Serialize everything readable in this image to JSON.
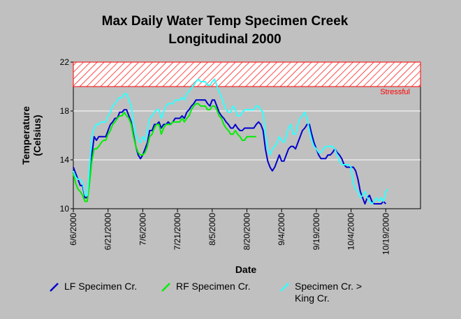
{
  "chart_data": {
    "type": "line",
    "title": [
      "Max Daily Water Temp Specimen Creek",
      "Longitudinal 2000"
    ],
    "xlabel": "Date",
    "ylabel": [
      "Temperature",
      "(Celsius)"
    ],
    "ylim": [
      10,
      22
    ],
    "yticks": [
      10,
      14,
      18,
      22
    ],
    "xlim": [
      0,
      150
    ],
    "xticks": [
      {
        "day": 0,
        "label": "6/6/2000"
      },
      {
        "day": 15,
        "label": "6/21/2000"
      },
      {
        "day": 30,
        "label": "7/6/2000"
      },
      {
        "day": 45,
        "label": "7/21/2000"
      },
      {
        "day": 60,
        "label": "8/5/2000"
      },
      {
        "day": 75,
        "label": "8/20/2000"
      },
      {
        "day": 90,
        "label": "9/4/2000"
      },
      {
        "day": 105,
        "label": "9/19/2000"
      },
      {
        "day": 120,
        "label": "10/4/2000"
      },
      {
        "day": 135,
        "label": "10/19/2000"
      }
    ],
    "grid": true,
    "band": {
      "from": 20,
      "to": 22,
      "label": "Stressful",
      "color": "#ff0000"
    },
    "legend_position": "bottom",
    "series": [
      {
        "name": "LF Specimen Cr.",
        "color": "#0000cc",
        "x": [
          0,
          1,
          2,
          3,
          4,
          5,
          6,
          7,
          8,
          9,
          10,
          11,
          12,
          13,
          14,
          15,
          16,
          17,
          18,
          19,
          20,
          21,
          22,
          23,
          24,
          25,
          26,
          27,
          28,
          29,
          30,
          31,
          32,
          33,
          34,
          35,
          36,
          37,
          38,
          39,
          40,
          41,
          42,
          43,
          44,
          45,
          46,
          47,
          48,
          49,
          50,
          51,
          52,
          53,
          54,
          55,
          56,
          57,
          58,
          59,
          60,
          61,
          62,
          63,
          64,
          65,
          66,
          67,
          68,
          69,
          70,
          71,
          72,
          73,
          74,
          75,
          76,
          77,
          78,
          79,
          80,
          81,
          82,
          83,
          84,
          85,
          86,
          87,
          88,
          89,
          90,
          91,
          92,
          93,
          94,
          95,
          96,
          97,
          98,
          99,
          100,
          101,
          102,
          103,
          104,
          105,
          106,
          107,
          108,
          109,
          110,
          111,
          112,
          113,
          114,
          115,
          116,
          117,
          118,
          119,
          120,
          121,
          122,
          123,
          124,
          125,
          126,
          127,
          128,
          129,
          130,
          131,
          132,
          133,
          134,
          135
        ],
        "values": [
          13.4,
          12.9,
          12.4,
          11.9,
          11.9,
          10.9,
          10.9,
          12.4,
          14.4,
          15.9,
          15.6,
          15.9,
          15.9,
          15.9,
          15.9,
          16.4,
          16.9,
          17.1,
          17.4,
          17.4,
          17.9,
          17.9,
          18.1,
          18.1,
          17.6,
          17.1,
          16.1,
          15.1,
          14.4,
          14.1,
          14.4,
          14.9,
          15.4,
          16.4,
          16.4,
          16.9,
          16.9,
          17.1,
          16.6,
          16.9,
          16.9,
          17.1,
          16.9,
          17.1,
          17.4,
          17.4,
          17.4,
          17.6,
          17.4,
          17.9,
          18.1,
          18.4,
          18.6,
          18.9,
          18.9,
          18.9,
          18.9,
          18.9,
          18.6,
          18.4,
          18.9,
          18.9,
          18.4,
          17.9,
          17.6,
          17.4,
          17.1,
          16.9,
          16.6,
          16.6,
          16.9,
          16.6,
          16.4,
          16.4,
          16.6,
          16.6,
          16.6,
          16.6,
          16.6,
          16.9,
          17.1,
          16.9,
          16.4,
          14.9,
          13.9,
          13.4,
          13.1,
          13.4,
          13.9,
          14.4,
          13.9,
          13.9,
          14.4,
          14.9,
          15.1,
          15.1,
          14.9,
          15.4,
          15.9,
          16.4,
          16.6,
          16.9,
          16.9,
          16.1,
          15.4,
          14.9,
          14.4,
          14.1,
          14.1,
          14.1,
          14.4,
          14.4,
          14.6,
          14.9,
          14.6,
          14.4,
          14.1,
          13.6,
          13.4,
          13.4,
          13.4,
          13.4,
          13.1,
          12.4,
          11.4,
          10.9,
          10.4,
          10.9,
          11.1,
          10.6,
          10.4,
          10.4,
          10.4,
          10.4,
          10.6,
          10.4
        ]
      },
      {
        "name": "RF Specimen Cr.",
        "color": "#00ee00",
        "x": [
          0,
          1,
          2,
          3,
          4,
          5,
          6,
          7,
          8,
          9,
          10,
          11,
          12,
          13,
          14,
          15,
          16,
          17,
          18,
          19,
          20,
          21,
          22,
          23,
          24,
          25,
          26,
          27,
          28,
          29,
          30,
          31,
          32,
          33,
          34,
          35,
          36,
          37,
          38,
          39,
          40,
          41,
          42,
          43,
          44,
          45,
          46,
          47,
          48,
          49,
          50,
          51,
          52,
          53,
          54,
          55,
          56,
          57,
          58,
          59,
          60,
          61,
          62,
          63,
          64,
          65,
          66,
          67,
          68,
          69,
          70,
          71,
          72,
          73,
          74,
          75,
          76,
          77,
          78,
          79
        ],
        "values": [
          12.9,
          12.1,
          11.6,
          11.4,
          11.1,
          10.6,
          10.6,
          12.1,
          13.9,
          14.9,
          14.9,
          15.1,
          15.4,
          15.6,
          15.6,
          16.1,
          16.4,
          16.9,
          17.1,
          17.4,
          17.6,
          17.6,
          17.9,
          17.6,
          17.4,
          16.9,
          15.9,
          15.1,
          14.6,
          14.4,
          14.4,
          14.6,
          15.1,
          15.9,
          16.1,
          16.6,
          16.9,
          16.9,
          16.1,
          16.6,
          16.9,
          16.9,
          16.9,
          17.1,
          17.1,
          17.1,
          17.1,
          17.4,
          17.1,
          17.4,
          17.6,
          18.1,
          18.4,
          18.6,
          18.6,
          18.4,
          18.4,
          18.4,
          18.1,
          18.1,
          18.4,
          18.4,
          18.1,
          17.6,
          17.4,
          16.9,
          16.6,
          16.4,
          16.1,
          16.1,
          16.4,
          16.1,
          15.9,
          15.6,
          15.6,
          15.9,
          15.9,
          15.9,
          15.9,
          15.9
        ]
      },
      {
        "name": "Specimen Cr. > King Cr.",
        "color": "#33ffff",
        "x": [
          0,
          1,
          2,
          3,
          4,
          5,
          6,
          7,
          8,
          9,
          10,
          11,
          12,
          13,
          14,
          15,
          16,
          17,
          18,
          19,
          20,
          21,
          22,
          23,
          24,
          25,
          26,
          27,
          28,
          29,
          30,
          31,
          32,
          33,
          34,
          35,
          36,
          37,
          38,
          39,
          40,
          41,
          42,
          43,
          44,
          45,
          46,
          47,
          48,
          49,
          50,
          51,
          52,
          53,
          54,
          55,
          56,
          57,
          58,
          59,
          60,
          61,
          62,
          63,
          64,
          65,
          66,
          67,
          68,
          69,
          70,
          71,
          72,
          73,
          74,
          75,
          76,
          77,
          78,
          79,
          80,
          81,
          82,
          83,
          84,
          85,
          86,
          87,
          88,
          89,
          90,
          91,
          92,
          93,
          94,
          95,
          96,
          97,
          98,
          99,
          100,
          101,
          102,
          103,
          104,
          105,
          106,
          107,
          108,
          109,
          110,
          111,
          112,
          113,
          114,
          115,
          116,
          117,
          118,
          119,
          120,
          121,
          122,
          123,
          124,
          125,
          126,
          127,
          128,
          129,
          130,
          131,
          132,
          133,
          134,
          135,
          136
        ],
        "values": [
          13.1,
          12.6,
          12.4,
          12.4,
          12.1,
          11.1,
          11.1,
          13.4,
          15.9,
          16.6,
          16.9,
          16.9,
          17.1,
          17.1,
          17.1,
          17.6,
          17.9,
          18.4,
          18.6,
          18.9,
          19.1,
          19.1,
          19.4,
          19.4,
          18.9,
          18.4,
          17.1,
          16.1,
          15.6,
          15.4,
          15.9,
          15.6,
          16.4,
          17.4,
          17.6,
          17.9,
          18.1,
          18.1,
          17.4,
          17.9,
          18.4,
          18.6,
          18.6,
          18.6,
          18.9,
          18.9,
          18.9,
          19.1,
          18.9,
          19.4,
          19.6,
          19.9,
          20.1,
          20.4,
          20.6,
          20.4,
          20.4,
          20.4,
          20.1,
          20.1,
          20.4,
          20.6,
          20.1,
          19.6,
          19.1,
          18.6,
          18.1,
          17.9,
          17.9,
          18.4,
          18.1,
          17.6,
          17.6,
          17.9,
          18.1,
          18.1,
          18.1,
          18.1,
          18.1,
          18.4,
          18.4,
          18.1,
          17.9,
          16.1,
          14.9,
          14.4,
          14.9,
          15.1,
          15.4,
          15.9,
          15.6,
          15.4,
          15.9,
          16.6,
          16.9,
          16.1,
          16.1,
          16.9,
          17.4,
          17.6,
          17.9,
          17.4,
          16.4,
          15.6,
          15.1,
          14.9,
          14.6,
          14.6,
          14.9,
          15.1,
          15.1,
          15.1,
          15.1,
          14.9,
          14.4,
          13.9,
          13.6,
          13.6,
          13.6,
          13.6,
          13.4,
          12.1,
          11.6,
          11.4,
          10.9,
          11.1,
          11.4,
          10.9,
          10.6,
          10.4,
          10.6,
          10.9,
          10.6,
          10.9,
          10.6,
          11.4,
          11.6
        ]
      }
    ]
  }
}
